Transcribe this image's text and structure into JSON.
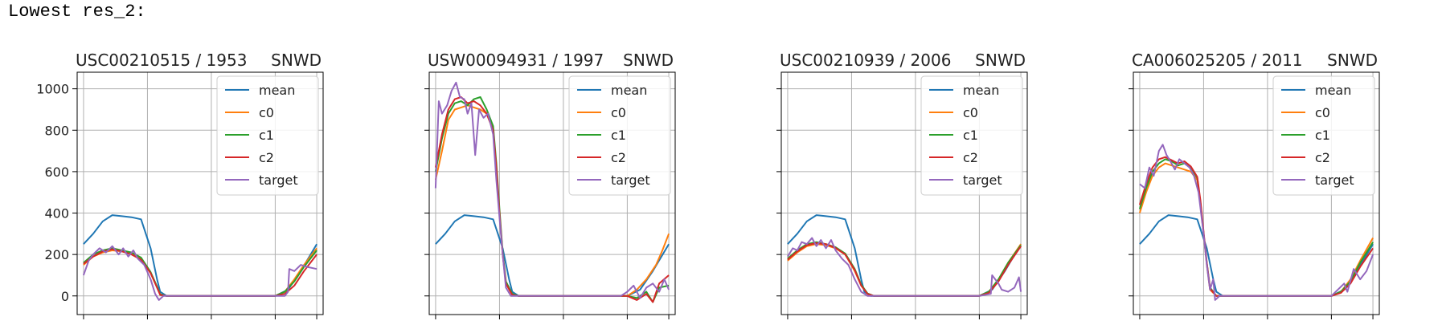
{
  "header": {
    "title": "Lowest res_2:"
  },
  "colors": {
    "mean": "#1f77b4",
    "c0": "#ff7f0e",
    "c1": "#2ca02c",
    "c2": "#d62728",
    "target": "#9467bd"
  },
  "chart_data": [
    {
      "type": "line",
      "title": "USC00210515 / 1953",
      "right_title": "SNWD",
      "ylim": [
        -90,
        1080
      ],
      "xlim": [
        -10,
        375
      ],
      "yticks": [
        0,
        200,
        400,
        600,
        800,
        1000
      ],
      "xticks": [
        0,
        100,
        200,
        300,
        365
      ],
      "grid": true,
      "legend": "top-right",
      "series": [
        {
          "name": "mean",
          "x": [
            0,
            15,
            30,
            45,
            60,
            75,
            90,
            105,
            115,
            120,
            130,
            200,
            280,
            300,
            320,
            340,
            365
          ],
          "y": [
            250,
            300,
            360,
            390,
            385,
            380,
            370,
            230,
            80,
            20,
            0,
            0,
            0,
            0,
            30,
            120,
            250
          ]
        },
        {
          "name": "c0",
          "x": [
            0,
            15,
            30,
            45,
            60,
            75,
            90,
            105,
            115,
            120,
            130,
            200,
            300,
            315,
            330,
            345,
            365
          ],
          "y": [
            150,
            190,
            210,
            220,
            215,
            205,
            180,
            110,
            40,
            5,
            0,
            0,
            0,
            20,
            80,
            150,
            230
          ]
        },
        {
          "name": "c1",
          "x": [
            0,
            15,
            30,
            45,
            60,
            75,
            90,
            105,
            115,
            120,
            130,
            200,
            300,
            315,
            330,
            345,
            365
          ],
          "y": [
            160,
            200,
            220,
            230,
            220,
            210,
            185,
            115,
            45,
            8,
            0,
            0,
            0,
            20,
            70,
            140,
            220
          ]
        },
        {
          "name": "c2",
          "x": [
            0,
            15,
            30,
            45,
            60,
            75,
            90,
            105,
            115,
            120,
            130,
            200,
            300,
            315,
            330,
            345,
            365
          ],
          "y": [
            155,
            190,
            215,
            225,
            215,
            200,
            175,
            110,
            40,
            5,
            0,
            0,
            0,
            10,
            50,
            120,
            200
          ]
        },
        {
          "name": "target",
          "x": [
            0,
            8,
            15,
            25,
            35,
            45,
            55,
            62,
            70,
            78,
            85,
            95,
            105,
            112,
            118,
            125,
            200,
            300,
            315,
            320,
            322,
            330,
            340,
            350,
            365
          ],
          "y": [
            100,
            170,
            200,
            230,
            210,
            240,
            200,
            230,
            190,
            220,
            180,
            150,
            80,
            10,
            -20,
            0,
            0,
            0,
            0,
            20,
            130,
            120,
            150,
            140,
            130
          ]
        }
      ]
    },
    {
      "type": "line",
      "title": "USW00094931 / 1997",
      "right_title": "SNWD",
      "ylim": [
        -90,
        1080
      ],
      "xlim": [
        -10,
        375
      ],
      "yticks": [
        0,
        200,
        400,
        600,
        800,
        1000
      ],
      "xticks": [
        0,
        100,
        200,
        300,
        365
      ],
      "grid": true,
      "legend": "top-right",
      "series": [
        {
          "name": "mean",
          "x": [
            0,
            15,
            30,
            45,
            60,
            75,
            90,
            105,
            115,
            120,
            130,
            200,
            280,
            300,
            320,
            340,
            365
          ],
          "y": [
            250,
            300,
            360,
            390,
            385,
            380,
            370,
            230,
            80,
            20,
            0,
            0,
            0,
            0,
            30,
            120,
            250
          ]
        },
        {
          "name": "c0",
          "x": [
            0,
            10,
            20,
            30,
            40,
            50,
            60,
            70,
            80,
            90,
            95,
            100,
            105,
            110,
            120,
            130,
            200,
            300,
            315,
            330,
            345,
            355,
            365
          ],
          "y": [
            560,
            700,
            850,
            900,
            910,
            920,
            910,
            900,
            880,
            800,
            620,
            400,
            200,
            60,
            5,
            0,
            0,
            0,
            30,
            80,
            150,
            220,
            300
          ]
        },
        {
          "name": "c1",
          "x": [
            0,
            10,
            20,
            30,
            40,
            50,
            60,
            70,
            80,
            90,
            95,
            100,
            105,
            110,
            120,
            130,
            200,
            300,
            315,
            330,
            340,
            350,
            365
          ],
          "y": [
            600,
            760,
            880,
            930,
            940,
            920,
            950,
            960,
            900,
            820,
            640,
            420,
            210,
            70,
            10,
            0,
            0,
            0,
            -10,
            20,
            -30,
            40,
            50
          ]
        },
        {
          "name": "c2",
          "x": [
            0,
            10,
            20,
            30,
            40,
            50,
            60,
            70,
            80,
            90,
            95,
            100,
            105,
            110,
            120,
            130,
            200,
            300,
            315,
            330,
            340,
            350,
            365
          ],
          "y": [
            620,
            780,
            900,
            950,
            960,
            930,
            940,
            920,
            880,
            800,
            620,
            400,
            200,
            60,
            5,
            0,
            0,
            0,
            -20,
            10,
            -30,
            60,
            100
          ]
        },
        {
          "name": "target",
          "x": [
            0,
            5,
            10,
            18,
            25,
            32,
            38,
            45,
            50,
            56,
            62,
            68,
            75,
            82,
            90,
            95,
            100,
            105,
            110,
            118,
            125,
            200,
            290,
            300,
            310,
            320,
            330,
            340,
            350,
            358,
            365
          ],
          "y": [
            520,
            940,
            880,
            920,
            990,
            1030,
            960,
            950,
            880,
            930,
            680,
            900,
            860,
            880,
            780,
            560,
            380,
            200,
            40,
            0,
            0,
            0,
            0,
            20,
            50,
            -10,
            40,
            60,
            20,
            80,
            30
          ]
        }
      ]
    },
    {
      "type": "line",
      "title": "USC00210939 / 2006",
      "right_title": "SNWD",
      "ylim": [
        -90,
        1080
      ],
      "xlim": [
        -10,
        375
      ],
      "yticks": [
        0,
        200,
        400,
        600,
        800,
        1000
      ],
      "xticks": [
        0,
        100,
        200,
        300,
        365
      ],
      "grid": true,
      "legend": "top-right",
      "series": [
        {
          "name": "mean",
          "x": [
            0,
            15,
            30,
            45,
            60,
            75,
            90,
            105,
            115,
            120,
            130,
            200,
            280,
            300,
            320,
            340,
            365
          ],
          "y": [
            250,
            300,
            360,
            390,
            385,
            380,
            370,
            230,
            80,
            20,
            0,
            0,
            0,
            0,
            30,
            120,
            250
          ]
        },
        {
          "name": "c0",
          "x": [
            0,
            15,
            30,
            45,
            60,
            75,
            90,
            105,
            115,
            125,
            135,
            200,
            300,
            315,
            330,
            345,
            365
          ],
          "y": [
            170,
            210,
            240,
            250,
            245,
            230,
            200,
            120,
            50,
            10,
            0,
            0,
            0,
            20,
            80,
            160,
            250
          ]
        },
        {
          "name": "c1",
          "x": [
            0,
            15,
            30,
            45,
            60,
            75,
            90,
            105,
            115,
            125,
            135,
            200,
            300,
            315,
            330,
            345,
            365
          ],
          "y": [
            180,
            220,
            250,
            260,
            250,
            235,
            205,
            130,
            55,
            12,
            0,
            0,
            0,
            20,
            80,
            160,
            245
          ]
        },
        {
          "name": "c2",
          "x": [
            0,
            15,
            30,
            45,
            60,
            75,
            90,
            105,
            115,
            125,
            135,
            200,
            300,
            315,
            330,
            345,
            365
          ],
          "y": [
            175,
            215,
            245,
            255,
            250,
            232,
            200,
            125,
            50,
            10,
            0,
            0,
            0,
            15,
            70,
            150,
            240
          ]
        },
        {
          "name": "target",
          "x": [
            0,
            8,
            15,
            22,
            30,
            38,
            45,
            52,
            60,
            68,
            75,
            85,
            95,
            105,
            115,
            125,
            200,
            300,
            318,
            320,
            330,
            335,
            345,
            355,
            362,
            365
          ],
          "y": [
            190,
            230,
            220,
            260,
            250,
            280,
            240,
            270,
            230,
            270,
            220,
            180,
            150,
            80,
            20,
            0,
            0,
            0,
            10,
            100,
            60,
            30,
            20,
            40,
            90,
            20
          ]
        }
      ]
    },
    {
      "type": "line",
      "title": "CA006025205 / 2011",
      "right_title": "SNWD",
      "ylim": [
        -90,
        1080
      ],
      "xlim": [
        -10,
        375
      ],
      "yticks": [
        0,
        200,
        400,
        600,
        800,
        1000
      ],
      "xticks": [
        0,
        100,
        200,
        300,
        365
      ],
      "grid": true,
      "legend": "top-right",
      "series": [
        {
          "name": "mean",
          "x": [
            0,
            15,
            30,
            45,
            60,
            75,
            90,
            105,
            115,
            120,
            130,
            200,
            280,
            300,
            320,
            340,
            365
          ],
          "y": [
            250,
            300,
            360,
            390,
            385,
            380,
            370,
            230,
            80,
            20,
            0,
            0,
            0,
            0,
            30,
            120,
            250
          ]
        },
        {
          "name": "c0",
          "x": [
            0,
            10,
            20,
            30,
            40,
            50,
            60,
            70,
            80,
            90,
            95,
            100,
            105,
            110,
            120,
            130,
            200,
            300,
            315,
            330,
            345,
            365
          ],
          "y": [
            400,
            500,
            580,
            620,
            640,
            630,
            620,
            610,
            600,
            560,
            440,
            300,
            150,
            30,
            0,
            0,
            0,
            0,
            20,
            80,
            170,
            280
          ]
        },
        {
          "name": "c1",
          "x": [
            0,
            10,
            20,
            30,
            40,
            50,
            60,
            70,
            80,
            90,
            95,
            100,
            105,
            110,
            120,
            130,
            200,
            300,
            315,
            330,
            345,
            365
          ],
          "y": [
            420,
            520,
            600,
            640,
            660,
            650,
            630,
            640,
            620,
            570,
            450,
            300,
            160,
            40,
            0,
            0,
            0,
            0,
            20,
            70,
            160,
            260
          ]
        },
        {
          "name": "c2",
          "x": [
            0,
            10,
            20,
            30,
            40,
            50,
            60,
            70,
            80,
            90,
            95,
            100,
            105,
            110,
            120,
            130,
            200,
            300,
            315,
            330,
            345,
            365
          ],
          "y": [
            440,
            540,
            620,
            660,
            670,
            655,
            640,
            650,
            625,
            575,
            460,
            310,
            160,
            35,
            0,
            0,
            0,
            0,
            15,
            60,
            140,
            230
          ]
        },
        {
          "name": "target",
          "x": [
            0,
            8,
            15,
            22,
            30,
            36,
            42,
            48,
            55,
            62,
            70,
            78,
            85,
            92,
            100,
            105,
            110,
            115,
            118,
            125,
            200,
            300,
            320,
            325,
            335,
            345,
            355,
            365
          ],
          "y": [
            540,
            520,
            620,
            580,
            700,
            730,
            680,
            650,
            610,
            660,
            640,
            620,
            580,
            500,
            300,
            150,
            30,
            80,
            -20,
            0,
            0,
            0,
            60,
            20,
            130,
            80,
            120,
            200
          ]
        }
      ]
    }
  ]
}
